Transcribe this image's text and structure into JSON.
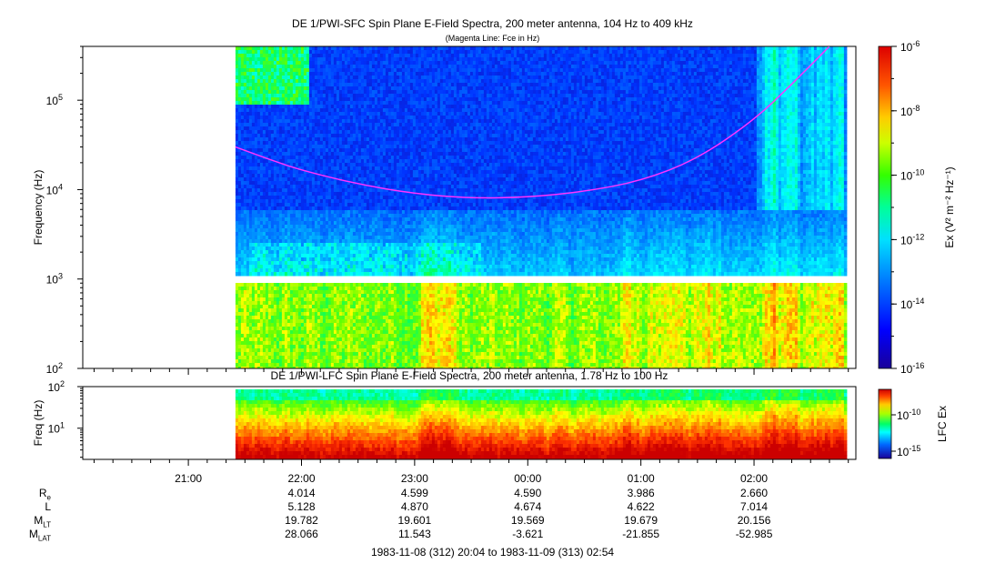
{
  "chart_data": [
    {
      "type": "heatmap",
      "title": "DE 1/PWI-SFC  Spin Plane E-Field Spectra, 200 meter antenna, 104 Hz to 409 kHz",
      "subtitle": "(Magenta Line: Fce in Hz)",
      "ylabel": "Frequency (Hz)",
      "yscale": "log",
      "ylim": [
        100,
        400000
      ],
      "ytick_labels": [
        "10^2",
        "10^3",
        "10^4",
        "10^5"
      ],
      "colorbar": {
        "label": "Ex (V² m⁻² Hz⁻¹)",
        "scale": "log",
        "range": [
          1e-16,
          1e-06
        ],
        "tick_labels": [
          "10^-6",
          "10^-8",
          "10^-10",
          "10^-12",
          "10^-14",
          "10^-16"
        ]
      },
      "data_start": "21:25",
      "data_end": "02:48",
      "gap_frequency_hz": [
        920,
        1050
      ],
      "series": [
        {
          "name": "Fce",
          "color": "#ff33ff",
          "x": [
            "21:25",
            "21:45",
            "22:00",
            "22:30",
            "23:00",
            "23:30",
            "00:00",
            "00:30",
            "01:00",
            "01:30",
            "02:00",
            "02:20",
            "02:40"
          ],
          "y": [
            30000,
            21000,
            16500,
            11500,
            9000,
            8000,
            8200,
            9500,
            12500,
            22000,
            60000,
            150000,
            400000
          ]
        }
      ]
    },
    {
      "type": "heatmap",
      "title": "DE 1/PWI-LFC  Spin Plane E-Field Spectra, 200 meter antenna, 1.78 Hz to 100 Hz",
      "ylabel": "Freq (Hz)",
      "yscale": "log",
      "ylim": [
        1.78,
        100
      ],
      "ytick_labels": [
        "10^1",
        "10^2"
      ],
      "colorbar": {
        "label": "LFC Ex",
        "scale": "log",
        "tick_labels": [
          "10^-10",
          "10^-15"
        ]
      },
      "data_start": "21:25",
      "data_end": "02:48"
    }
  ],
  "time_axis": {
    "start": "20:04",
    "end": "02:54",
    "tick_labels": [
      "21:00",
      "22:00",
      "23:00",
      "00:00",
      "01:00",
      "02:00"
    ]
  },
  "ephemeris": {
    "rows": [
      {
        "label": "R",
        "sub": "e",
        "values": [
          "4.014",
          "4.599",
          "4.590",
          "3.986",
          "2.660"
        ]
      },
      {
        "label": "L",
        "sub": "",
        "values": [
          "5.128",
          "4.870",
          "4.674",
          "4.622",
          "7.014"
        ]
      },
      {
        "label": "M",
        "sub": "LT",
        "values": [
          "19.782",
          "19.601",
          "19.569",
          "19.679",
          "20.156"
        ]
      },
      {
        "label": "M",
        "sub": "LAT",
        "values": [
          "28.066",
          "11.543",
          "-3.621",
          "-21.855",
          "-52.985"
        ]
      }
    ]
  },
  "footer": "1983-11-08 (312) 20:04 to 1983-11-09 (313) 02:54",
  "colors": {
    "colormap": [
      "#1a0099",
      "#0033ff",
      "#0099ff",
      "#00ffff",
      "#00ff66",
      "#66ff00",
      "#ffff00",
      "#ff9900",
      "#ff3300",
      "#cc0000"
    ],
    "fce_line": "#ff33ff"
  }
}
